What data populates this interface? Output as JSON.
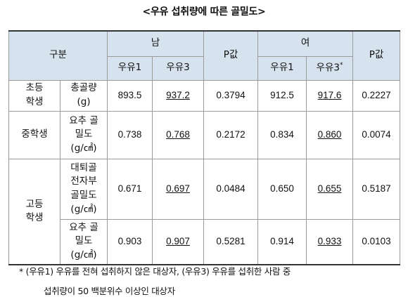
{
  "title": "<우유 섭취량에 따른 골밀도>",
  "header": {
    "group": "구분",
    "male": "남",
    "female": "여",
    "p_value": "P값",
    "milk1": "우유1",
    "milk3": "우유3",
    "milk3_female": "우유3",
    "star": "*"
  },
  "rows": [
    {
      "group": "초등\n학생",
      "measure": "총골량\n(g)",
      "m1": "893.5",
      "m3": "937.2",
      "pm": "0.3794",
      "f1": "912.5",
      "f3": "917.6",
      "pf": "0.2227"
    },
    {
      "group": "중학생",
      "measure": "요추 골\n밀도\n(g/㎠)",
      "m1": "0.738",
      "m3": "0.768",
      "pm": "0.2172",
      "f1": "0.834",
      "f3": "0.860",
      "pf": "0.0074"
    },
    {
      "group": "고등\n학생",
      "measure": "대퇴골\n전자부\n골밀도\n(g/㎠)",
      "m1": "0.671",
      "m3": "0.697",
      "pm": "0.0484",
      "f1": "0.650",
      "f3": "0.655",
      "pf": "0.5187"
    },
    {
      "measure": "요추 골\n밀도\n(g/㎠)",
      "m1": "0.903",
      "m3": "0.907",
      "pm": "0.5281",
      "f1": "0.914",
      "f3": "0.933",
      "pf": "0.0103"
    }
  ],
  "note": {
    "line1": "* (우유1) 우유를 전혀 섭취하지 않은 대상자, (우유3) 우유를 섭취한 사람 중",
    "line2": "섭취량이 50 백분위수 이상인 대상자"
  }
}
